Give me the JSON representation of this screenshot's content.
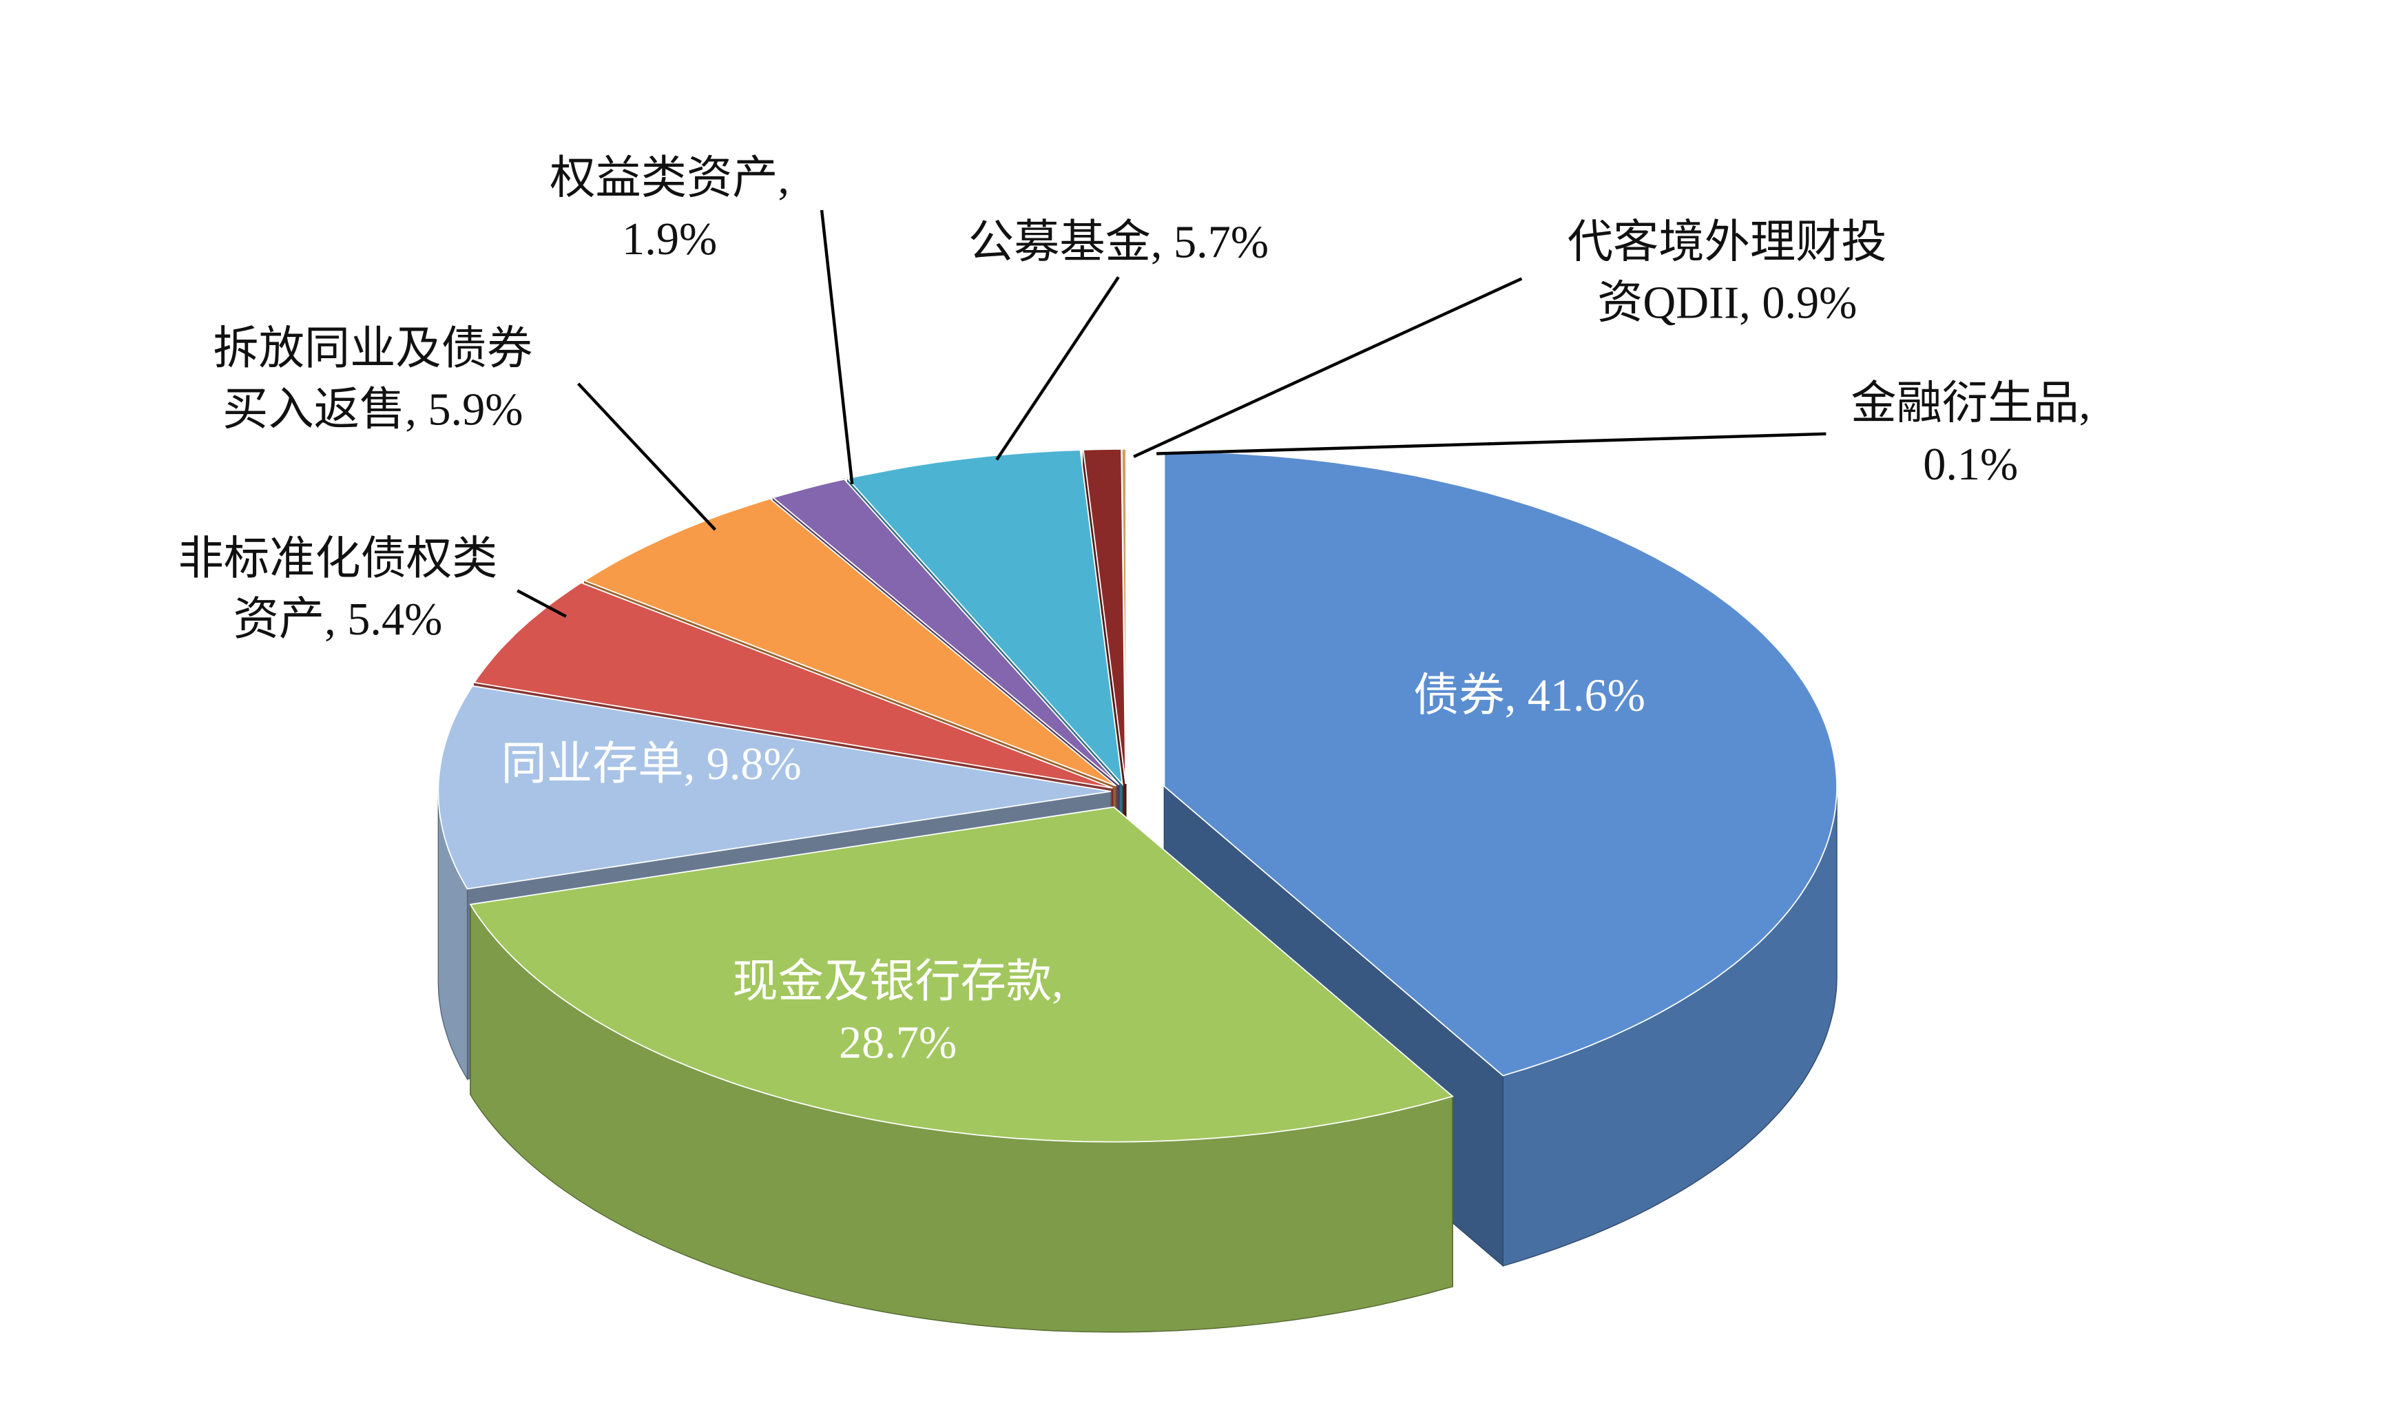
{
  "chart_data": {
    "type": "pie3d",
    "labels": [
      [
        "债券, 41.6%"
      ],
      [
        "现金及银行存款,",
        "28.7%"
      ],
      [
        "同业存单, 9.8%"
      ],
      [
        "非标准化债权类",
        "资产, 5.4%"
      ],
      [
        "拆放同业及债券",
        "买入返售, 5.9%"
      ],
      [
        "权益类资产,",
        "1.9%"
      ],
      [
        "公募基金, 5.7%"
      ],
      [
        "代客境外理财投",
        "资QDII, 0.9%"
      ],
      [
        "金融衍生品,",
        "0.1%"
      ]
    ],
    "values": [
      41.6,
      28.7,
      9.8,
      5.4,
      5.9,
      1.9,
      5.7,
      0.9,
      0.1
    ],
    "colors": [
      "#5b8ed0",
      "#a2c75e",
      "#a8c3e6",
      "#d6554f",
      "#f79b48",
      "#8366ad",
      "#4cb4d2",
      "#8a2a28",
      "#c9a063"
    ]
  }
}
